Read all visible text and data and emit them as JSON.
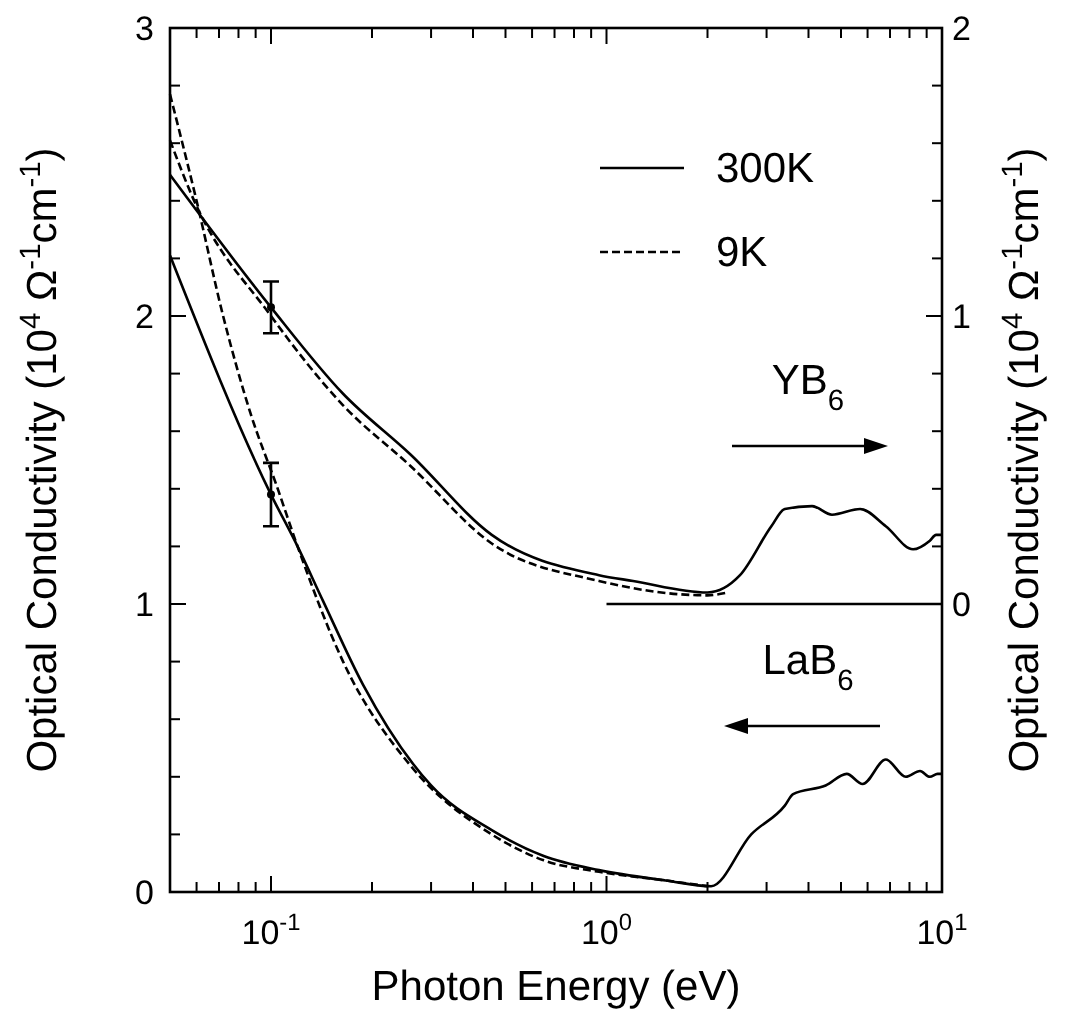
{
  "chart_data": {
    "type": "line",
    "xlabel": "Photon Energy (eV)",
    "ylabel": "Optical Conductivity (10$^{4}$ Ω$^{-1}$cm$^{-1}$)",
    "y2label": "Optical Conductivity (10$^{4}$ Ω$^{-1}$cm$^{-1}$)",
    "log": "x",
    "xlim": [
      0.05,
      10
    ],
    "ylim": [
      0,
      3
    ],
    "y2lim": [
      -1,
      2
    ],
    "xticks": [
      {
        "value": 0.06,
        "label": null
      },
      {
        "value": 0.07,
        "label": null
      },
      {
        "value": 0.08,
        "label": null
      },
      {
        "value": 0.09,
        "label": null
      },
      {
        "value": 0.1,
        "label": "10$^{-1}$"
      },
      {
        "value": 0.2,
        "label": null
      },
      {
        "value": 0.3,
        "label": null
      },
      {
        "value": 0.4,
        "label": null
      },
      {
        "value": 0.5,
        "label": null
      },
      {
        "value": 0.6,
        "label": null
      },
      {
        "value": 0.7,
        "label": null
      },
      {
        "value": 0.8,
        "label": null
      },
      {
        "value": 0.9,
        "label": null
      },
      {
        "value": 1,
        "label": "10$^{0}$"
      },
      {
        "value": 2,
        "label": null
      },
      {
        "value": 3,
        "label": null
      },
      {
        "value": 4,
        "label": null
      },
      {
        "value": 5,
        "label": null
      },
      {
        "value": 6,
        "label": null
      },
      {
        "value": 7,
        "label": null
      },
      {
        "value": 8,
        "label": null
      },
      {
        "value": 9,
        "label": null
      },
      {
        "value": 10,
        "label": "10$^{1}$"
      }
    ],
    "yticks": [
      0,
      {
        "value": 0.2,
        "label": null
      },
      {
        "value": 0.4,
        "label": null
      },
      {
        "value": 0.6,
        "label": null
      },
      {
        "value": 0.8,
        "label": null
      },
      1,
      {
        "value": 1.2,
        "label": null
      },
      {
        "value": 1.4,
        "label": null
      },
      {
        "value": 1.6,
        "label": null
      },
      {
        "value": 1.8,
        "label": null
      },
      2,
      {
        "value": 2.2,
        "label": null
      },
      {
        "value": 2.4,
        "label": null
      },
      {
        "value": 2.6,
        "label": null
      },
      {
        "value": 2.8,
        "label": null
      },
      3
    ],
    "y2ticks": [
      0,
      {
        "value": 0.2,
        "label": null
      },
      {
        "value": 0.4,
        "label": null
      },
      {
        "value": 0.6,
        "label": null
      },
      {
        "value": 0.8,
        "label": null
      },
      1,
      {
        "value": 1.2,
        "label": null
      },
      {
        "value": 1.4,
        "label": null
      },
      {
        "value": 1.6,
        "label": null
      },
      {
        "value": 1.8,
        "label": null
      },
      2
    ],
    "legend": "top right",
    "grid": false,
    "series": [
      {
        "name": "300K",
        "color": "#000000",
        "line_style": "solid",
        "marker": "none",
        "x": [
          0.05,
          0.1,
          0.12,
          0.143,
          0.188,
          0.3,
          0.455,
          0.65,
          0.95,
          1.5,
          2.05,
          2.7,
          3.4,
          3.6,
          4.5,
          5.2,
          5.8,
          6.8,
          7.8,
          8.6,
          9.2,
          9.7,
          10
        ],
        "values": [
          2.21,
          1.38,
          1.2,
          1.01,
          0.72,
          0.37,
          0.215,
          0.125,
          0.076,
          0.04,
          0.02,
          0.2,
          0.3,
          0.34,
          0.37,
          0.41,
          0.375,
          0.46,
          0.4,
          0.42,
          0.4,
          0.41,
          0.41
        ]
      },
      {
        "name": "9K",
        "color": "#000000",
        "line_style": "dashed",
        "marker": "none",
        "x": [
          0.05,
          0.06,
          0.072,
          0.087,
          0.104,
          0.12,
          0.164,
          0.26,
          0.455,
          0.65,
          0.95,
          1.5,
          2.0
        ],
        "values": [
          2.77,
          2.4,
          2.0,
          1.66,
          1.41,
          1.2,
          0.8,
          0.44,
          0.2,
          0.11,
          0.07,
          0.04,
          0.02
        ]
      },
      {
        "color": "#000000",
        "line_style": "solid",
        "marker": "none",
        "axis": "y2",
        "x": [
          0.05,
          0.1,
          0.164,
          0.26,
          0.455,
          0.95,
          1.2,
          2.0,
          2.5,
          3.1,
          3.4,
          4.1,
          4.7,
          5.7,
          6.8,
          8.2,
          9.2,
          9.6,
          10
        ],
        "values": [
          1.49,
          1.03,
          0.73,
          0.52,
          0.24,
          0.1,
          0.08,
          0.04,
          0.1,
          0.27,
          0.33,
          0.34,
          0.31,
          0.33,
          0.27,
          0.19,
          0.22,
          0.24,
          0.24
        ]
      },
      {
        "color": "#000000",
        "line_style": "dashed",
        "marker": "none",
        "axis": "y2",
        "x": [
          0.05,
          0.058,
          0.1,
          0.164,
          0.26,
          0.455,
          0.95,
          2.0,
          2.3
        ],
        "values": [
          1.61,
          1.42,
          1.0,
          0.69,
          0.48,
          0.21,
          0.08,
          0.03,
          0.04
        ]
      },
      {
        "type": "line",
        "color": "#000000",
        "line_style": "solid",
        "marker": "none",
        "axis": "y2",
        "x": [
          1,
          10
        ],
        "values": [
          0,
          0
        ]
      },
      {
        "type": "scatter",
        "color": "#000000",
        "marker": "circle",
        "x": [
          0.1
        ],
        "values": [
          1.38
        ],
        "errors": [
          0.11
        ]
      },
      {
        "type": "scatter",
        "color": "#000000",
        "marker": "circle",
        "axis": "y2",
        "x": [
          0.1
        ],
        "values": [
          1.03
        ],
        "errors": [
          0.09
        ]
      }
    ],
    "annotations": [
      "YB$_{6}$",
      "LaB$_{6}$"
    ]
  }
}
